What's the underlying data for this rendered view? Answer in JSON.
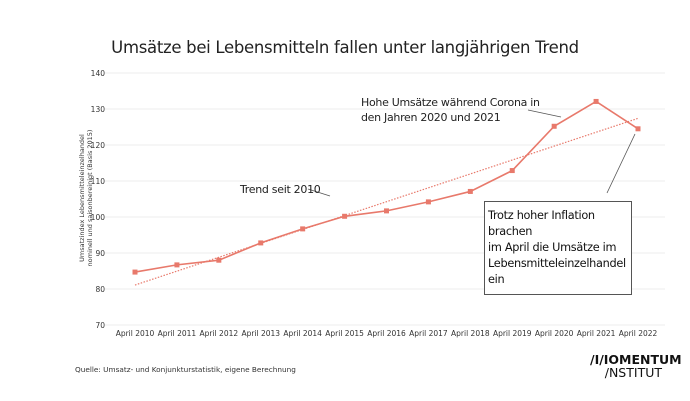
{
  "chart_data": {
    "type": "line",
    "title": "Umsätze bei Lebensmitteln fallen unter langjährigen Trend",
    "ylabel": [
      "Umsatzindex Lebensmitteleinzelhandel",
      "nominell und saisonbereinigt (Basis 2015)"
    ],
    "xlabel": "",
    "ylim": [
      70,
      140
    ],
    "yticks": [
      70,
      80,
      90,
      100,
      110,
      120,
      130,
      140
    ],
    "grid": true,
    "categories": [
      "April 2010",
      "April 2011",
      "April 2012",
      "April 2013",
      "April 2014",
      "April 2015",
      "April 2016",
      "April 2017",
      "April 2018",
      "April 2019",
      "April 2020",
      "April 2021",
      "April 2022"
    ],
    "series": [
      {
        "values": [
          84.7,
          86.7,
          88.0,
          92.8,
          96.7,
          100.2,
          101.7,
          104.2,
          107.1,
          112.9,
          125.2,
          132.1,
          124.5
        ],
        "color": "#e8796b"
      }
    ],
    "trend": {
      "start": 81.1,
      "end": 127.4,
      "color": "#e8796b",
      "style": "dotted"
    },
    "annotations": {
      "trend": "Trend seit 2010",
      "corona": [
        "Hohe Umsätze während Corona in",
        "den Jahren 2020 und 2021"
      ],
      "inflation": [
        "Trotz hoher Inflation brachen",
        "im April die Umsätze im",
        "Lebensmitteleinzelhandel ein"
      ]
    }
  },
  "source": "Quelle: Umsatz- und Konjunkturstatistik, eigene Berechnung",
  "logo": {
    "line1": "/I/IOMENTUM",
    "line2": "/NSTITUT"
  }
}
